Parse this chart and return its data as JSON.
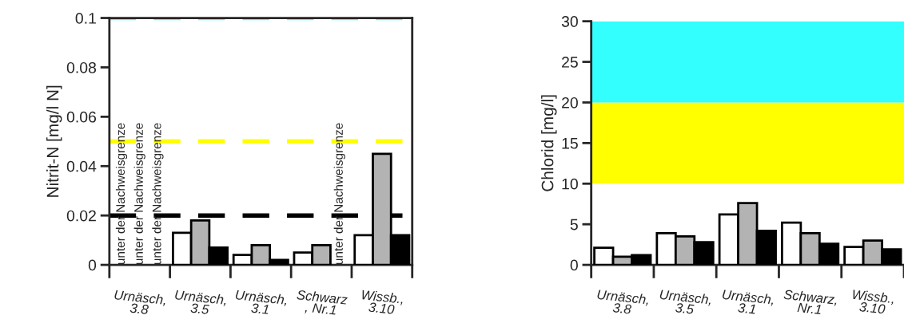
{
  "chart_data": [
    {
      "type": "bar",
      "ylabel": "Nitrit-N [mg/l N]",
      "categories": [
        "Urnäsch,\n3.8",
        "Urnäsch,\n3.5",
        "Urnäsch,\n3.1",
        "Schwarz\n, Nr.1",
        "Wissb.,\n3.10"
      ],
      "series": [
        {
          "color": "#ffffff",
          "values": [
            null,
            0.013,
            0.004,
            0.005,
            0.012
          ]
        },
        {
          "color": "#b3b3b3",
          "values": [
            null,
            0.018,
            0.008,
            0.008,
            0.045
          ]
        },
        {
          "color": "#000000",
          "values": [
            null,
            0.007,
            0.002,
            null,
            0.012
          ]
        }
      ],
      "ylim": [
        0,
        0.1
      ],
      "yticks": [
        0,
        0.02,
        0.04,
        0.06,
        0.08,
        0.1
      ],
      "ref_lines": [
        {
          "axis": "y",
          "value": 0.1,
          "color": "#33ffff",
          "line_style": "dashed"
        },
        {
          "axis": "y",
          "value": 0.05,
          "color": "#ffff00",
          "line_style": "dashed"
        },
        {
          "axis": "y",
          "value": 0.02,
          "color": "#000000",
          "line_style": "dashed"
        }
      ],
      "annotations": [
        "unter der Nachweisgrenze",
        "unter der Nachweisgrenze",
        "unter der Nachweisgrenze",
        "unter der Nachweisgrenze"
      ],
      "grid": false,
      "legend": false
    },
    {
      "type": "bar",
      "ylabel": "Chlorid [mg/l]",
      "categories": [
        "Urnäsch,\n3.8",
        "Urnäsch,\n3.5",
        "Urnäsch,\n3.1",
        "Schwarz,\nNr.1",
        "Wissb.,\n3.10"
      ],
      "series": [
        {
          "color": "#ffffff",
          "values": [
            2.1,
            3.9,
            6.2,
            5.2,
            2.2
          ]
        },
        {
          "color": "#b3b3b3",
          "values": [
            1.0,
            3.5,
            7.6,
            3.9,
            3.0
          ]
        },
        {
          "color": "#000000",
          "values": [
            1.2,
            2.8,
            4.2,
            2.6,
            1.9
          ]
        }
      ],
      "ylim": [
        0,
        30
      ],
      "yticks": [
        0,
        5,
        10,
        15,
        20,
        25,
        30
      ],
      "bands": [
        {
          "axis": "y",
          "from": 10,
          "to": 20,
          "color": "#ffff00"
        },
        {
          "axis": "y",
          "from": 20,
          "to": 30,
          "color": "#33ffff"
        }
      ],
      "grid": false,
      "legend": false
    }
  ]
}
